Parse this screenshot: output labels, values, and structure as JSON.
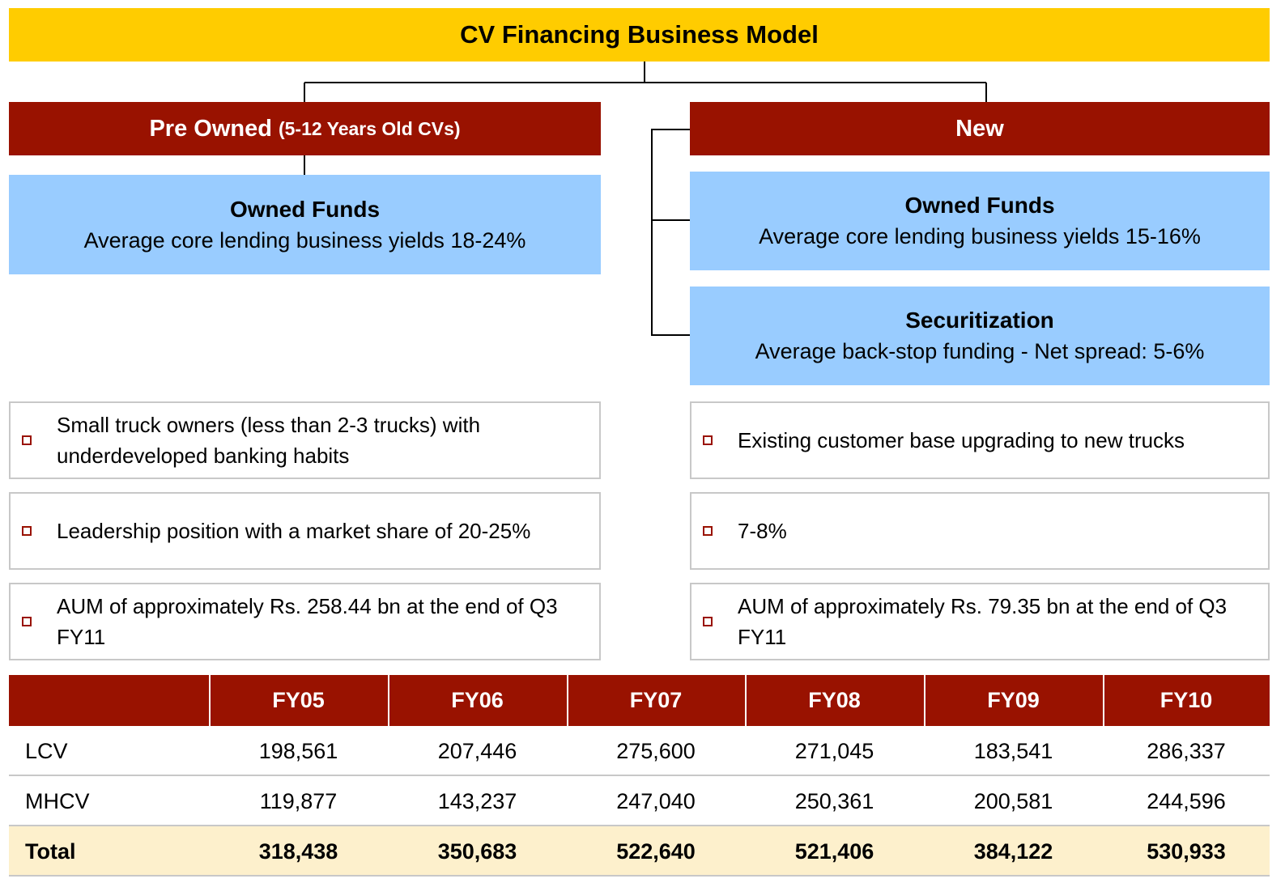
{
  "title": "CV Financing Business Model",
  "pre_owned": {
    "header": "Pre Owned",
    "header_sub": "(5-12 Years Old CVs)",
    "funds": {
      "title": "Owned Funds",
      "text": "Average core lending business yields 18-24%"
    },
    "bullets": [
      "Small truck owners (less than 2-3 trucks) with underdeveloped banking habits",
      "Leadership position with a market share of 20-25%",
      "AUM of  approximately Rs. 258.44 bn at the end of Q3 FY11"
    ]
  },
  "new": {
    "header": "New",
    "funds": [
      {
        "title": "Owned Funds",
        "text": "Average core lending business yields 15-16%"
      },
      {
        "title": "Securitization",
        "text": "Average back-stop funding - Net spread: 5-6%"
      }
    ],
    "bullets": [
      "Existing customer base upgrading to new trucks",
      "7-8%",
      "AUM of  approximately Rs. 79.35 bn at the end of Q3 FY11"
    ]
  },
  "table": {
    "columns": [
      "FY05",
      "FY06",
      "FY07",
      "FY08",
      "FY09",
      "FY10"
    ],
    "rows": [
      {
        "label": "LCV",
        "values": [
          "198,561",
          "207,446",
          "275,600",
          "271,045",
          "183,541",
          "286,337"
        ]
      },
      {
        "label": "MHCV",
        "values": [
          "119,877",
          "143,237",
          "247,040",
          "250,361",
          "200,581",
          "244,596"
        ]
      },
      {
        "label": "Total",
        "values": [
          "318,438",
          "350,683",
          "522,640",
          "521,406",
          "384,122",
          "530,933"
        ]
      }
    ]
  }
}
